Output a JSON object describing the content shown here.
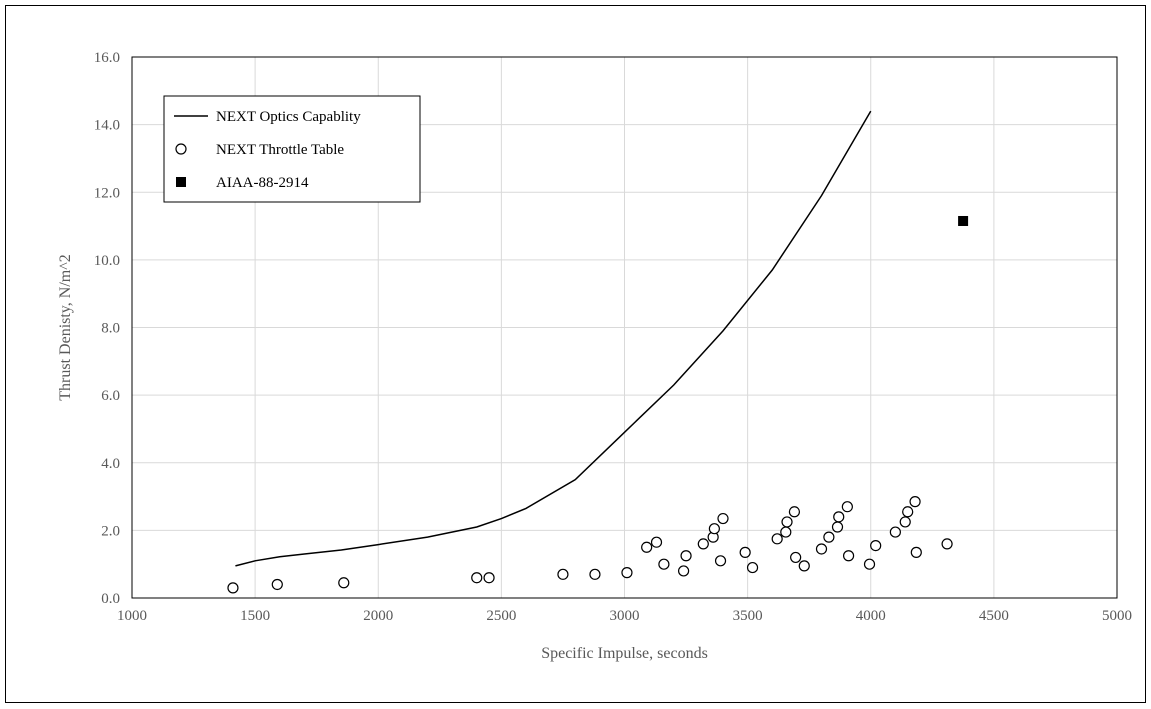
{
  "chart_data": {
    "type": "scatter",
    "title": "",
    "xlabel": "Specific Impulse, seconds",
    "ylabel": "Thrust Denisty, N/m^2",
    "xlim": [
      1000,
      5000
    ],
    "ylim": [
      0,
      16
    ],
    "xticks": [
      1000,
      1500,
      2000,
      2500,
      3000,
      3500,
      4000,
      4500,
      5000
    ],
    "yticks": [
      0,
      2,
      4,
      6,
      8,
      10,
      12,
      14,
      16
    ],
    "xtick_labels": [
      "1000",
      "1500",
      "2000",
      "2500",
      "3000",
      "3500",
      "4000",
      "4500",
      "5000"
    ],
    "ytick_labels": [
      "0.0",
      "2.0",
      "4.0",
      "6.0",
      "8.0",
      "10.0",
      "12.0",
      "14.0",
      "16.0"
    ],
    "grid": true,
    "legend": {
      "placement": "top-left",
      "entries": [
        "NEXT Optics Capablity",
        "NEXT Throttle Table",
        "AIAA-88-2914"
      ]
    },
    "series": [
      {
        "name": "NEXT Optics Capablity",
        "style": "line",
        "color": "#000000",
        "x": [
          1420,
          1500,
          1600,
          1700,
          1850,
          2000,
          2200,
          2400,
          2500,
          2600,
          2800,
          3000,
          3200,
          3400,
          3600,
          3800,
          4000
        ],
        "y": [
          0.95,
          1.1,
          1.22,
          1.3,
          1.42,
          1.58,
          1.8,
          2.1,
          2.35,
          2.65,
          3.5,
          4.9,
          6.3,
          7.9,
          9.7,
          11.9,
          14.4
        ]
      },
      {
        "name": "NEXT Throttle Table",
        "style": "open-circle",
        "color": "#000000",
        "x": [
          1410,
          1590,
          1860,
          2400,
          2450,
          2750,
          2880,
          3010,
          3090,
          3130,
          3160,
          3240,
          3250,
          3320,
          3360,
          3365,
          3390,
          3400,
          3490,
          3520,
          3620,
          3655,
          3660,
          3690,
          3695,
          3730,
          3800,
          3830,
          3865,
          3870,
          3905,
          3910,
          3995,
          4020,
          4100,
          4140,
          4150,
          4180,
          4185,
          4310
        ],
        "y": [
          0.3,
          0.4,
          0.45,
          0.6,
          0.6,
          0.7,
          0.7,
          0.75,
          1.5,
          1.65,
          1.0,
          0.8,
          1.25,
          1.6,
          1.8,
          2.05,
          1.1,
          2.35,
          1.35,
          0.9,
          1.75,
          1.95,
          2.25,
          2.55,
          1.2,
          0.95,
          1.45,
          1.8,
          2.1,
          2.4,
          2.7,
          1.25,
          1.0,
          1.55,
          1.95,
          2.25,
          2.55,
          2.85,
          1.35,
          1.6
        ]
      },
      {
        "name": "AIAA-88-2914",
        "style": "filled-square",
        "color": "#000000",
        "x": [
          4375
        ],
        "y": [
          11.15
        ]
      }
    ]
  }
}
